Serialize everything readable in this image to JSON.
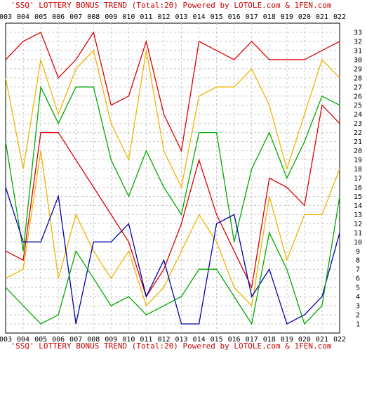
{
  "chart_data": {
    "type": "line",
    "title": "'SSQ' LOTTERY BONUS TREND (Total:20)  Powered by LOTOLE.com & 1FEN.com",
    "footer": "'SSQ' LOTTERY BONUS TREND (Total:20)  Powered by LOTOLE.com & 1FEN.com",
    "categories": [
      "003",
      "004",
      "005",
      "006",
      "007",
      "008",
      "009",
      "010",
      "011",
      "012",
      "013",
      "014",
      "015",
      "016",
      "017",
      "018",
      "019",
      "020",
      "021",
      "022"
    ],
    "ylim": [
      0,
      34
    ],
    "yticks": [
      "1",
      "2",
      "3",
      "4",
      "5",
      "6",
      "7",
      "8",
      "9",
      "10",
      "11",
      "12",
      "13",
      "14",
      "15",
      "16",
      "17",
      "18",
      "19",
      "20",
      "21",
      "22",
      "23",
      "24",
      "25",
      "26",
      "27",
      "28",
      "29",
      "30",
      "31",
      "32",
      "33"
    ],
    "grid": true,
    "series": [
      {
        "color": "#dd0000",
        "values": [
          30,
          32,
          33,
          28,
          30,
          33,
          25,
          26,
          32,
          24,
          20,
          32,
          31,
          30,
          32,
          30,
          30,
          30,
          31,
          32
        ]
      },
      {
        "color": "#f0b400",
        "values": [
          28,
          18,
          30,
          24,
          29,
          31,
          23,
          19,
          31,
          20,
          16,
          26,
          27,
          27,
          29,
          25,
          18,
          24,
          30,
          28
        ]
      },
      {
        "color": "#00aa00",
        "values": [
          21,
          9,
          27,
          23,
          27,
          27,
          19,
          15,
          20,
          16,
          13,
          22,
          22,
          10,
          18,
          22,
          17,
          21,
          26,
          25
        ]
      },
      {
        "color": "#dd0000",
        "values": [
          9,
          8,
          22,
          22,
          19,
          16,
          13,
          10,
          4,
          7,
          12,
          19,
          13,
          9,
          5,
          17,
          16,
          14,
          25,
          23
        ]
      },
      {
        "color": "#f0b400",
        "values": [
          6,
          7,
          20,
          6,
          13,
          9,
          6,
          9,
          3,
          5,
          9,
          13,
          10,
          5,
          3,
          15,
          8,
          13,
          13,
          18
        ]
      },
      {
        "color": "#0000aa",
        "values": [
          16,
          10,
          10,
          15,
          1,
          10,
          10,
          12,
          4,
          8,
          1,
          1,
          12,
          13,
          4,
          7,
          1,
          2,
          4,
          11
        ]
      },
      {
        "color": "#00aa00",
        "values": [
          5,
          3,
          1,
          2,
          9,
          6,
          3,
          4,
          2,
          3,
          4,
          7,
          7,
          4,
          1,
          11,
          7,
          1,
          3,
          15
        ]
      }
    ]
  }
}
